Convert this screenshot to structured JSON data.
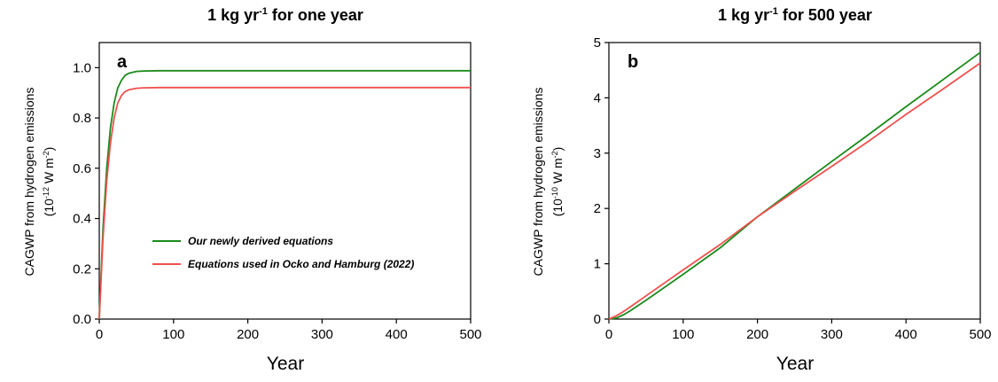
{
  "colors": {
    "green": "#1a8a1a",
    "red": "#f0504f",
    "axis": "#000000"
  },
  "chart_data": [
    {
      "type": "line",
      "panel": "a",
      "title": {
        "main": "1 kg yr",
        "sup": "-1",
        "rest": " for one year"
      },
      "xlabel": "Year",
      "ylabel": {
        "line1": "CAGWP from hydrogen emissions",
        "line2_pre": "(10",
        "line2_sup1": "-12",
        "line2_mid": " W m",
        "line2_sup2": "-2",
        "line2_post": ")"
      },
      "xlim": [
        0,
        500
      ],
      "ylim": [
        0,
        1.1
      ],
      "xticks": [
        0,
        100,
        200,
        300,
        400,
        500
      ],
      "xtick_labels": [
        "0",
        "100",
        "200",
        "300",
        "400",
        "500"
      ],
      "yticks": [
        0,
        0.2,
        0.4,
        0.6,
        0.8,
        1.0
      ],
      "ytick_labels": [
        "0.0",
        "0.2",
        "0.4",
        "0.6",
        "0.8",
        "1.0"
      ],
      "grid": false,
      "legend_position": "center",
      "series": [
        {
          "name": "Our newly derived equations",
          "color": "#1a8a1a",
          "x": [
            0,
            5,
            10,
            15,
            20,
            25,
            30,
            35,
            40,
            50,
            60,
            80,
            100,
            200,
            300,
            400,
            500
          ],
          "y": [
            0,
            0.36,
            0.6,
            0.76,
            0.86,
            0.92,
            0.95,
            0.97,
            0.978,
            0.985,
            0.987,
            0.988,
            0.988,
            0.988,
            0.988,
            0.988,
            0.988
          ]
        },
        {
          "name": "Equations used in Ocko and Hamburg (2022)",
          "color": "#f0504f",
          "x": [
            0,
            5,
            10,
            15,
            20,
            25,
            30,
            35,
            40,
            50,
            60,
            80,
            100,
            200,
            300,
            400,
            500
          ],
          "y": [
            0,
            0.32,
            0.55,
            0.7,
            0.8,
            0.86,
            0.89,
            0.905,
            0.912,
            0.918,
            0.92,
            0.921,
            0.921,
            0.921,
            0.921,
            0.921,
            0.921
          ]
        }
      ]
    },
    {
      "type": "line",
      "panel": "b",
      "title": {
        "main": "1 kg yr",
        "sup": "-1",
        "rest": " for 500 year"
      },
      "xlabel": "Year",
      "ylabel": {
        "line1": "CAGWP from hydrogen emissions",
        "line2_pre": "(10",
        "line2_sup1": "-10",
        "line2_mid": " W m",
        "line2_sup2": "-2",
        "line2_post": ")"
      },
      "xlim": [
        0,
        500
      ],
      "ylim": [
        0,
        5
      ],
      "xticks": [
        0,
        100,
        200,
        300,
        400,
        500
      ],
      "xtick_labels": [
        "0",
        "100",
        "200",
        "300",
        "400",
        "500"
      ],
      "yticks": [
        0,
        1,
        2,
        3,
        4,
        5
      ],
      "ytick_labels": [
        "0",
        "1",
        "2",
        "3",
        "4",
        "5"
      ],
      "grid": false,
      "series": [
        {
          "name": "Our newly derived equations",
          "color": "#1a8a1a",
          "x": [
            0,
            10,
            20,
            30,
            50,
            100,
            150,
            200,
            250,
            300,
            350,
            400,
            450,
            500
          ],
          "y": [
            0,
            0.02,
            0.08,
            0.16,
            0.34,
            0.81,
            1.29,
            1.85,
            2.35,
            2.85,
            3.34,
            3.84,
            4.33,
            4.82
          ]
        },
        {
          "name": "Equations used in Ocko and Hamburg (2022)",
          "color": "#f0504f",
          "x": [
            0,
            10,
            20,
            30,
            50,
            100,
            150,
            200,
            250,
            300,
            350,
            400,
            450,
            500
          ],
          "y": [
            0,
            0.06,
            0.14,
            0.23,
            0.42,
            0.89,
            1.35,
            1.85,
            2.31,
            2.76,
            3.22,
            3.7,
            4.16,
            4.63
          ]
        }
      ]
    }
  ]
}
